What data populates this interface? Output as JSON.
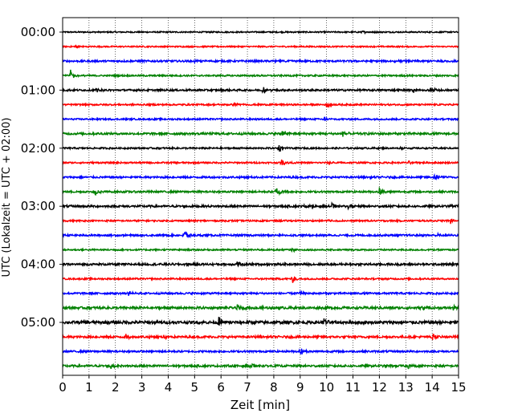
{
  "chart_data": {
    "type": "line",
    "xlabel": "Zeit  [min]",
    "ylabel": "UTC (Lokalzeit = UTC + 02:00)",
    "xlim": [
      0,
      15
    ],
    "x_ticks": [
      0,
      1,
      2,
      3,
      4,
      5,
      6,
      7,
      8,
      9,
      10,
      11,
      12,
      13,
      14,
      15
    ],
    "x_grid": true,
    "trace_minutes": 15,
    "trace_count": 24,
    "color_cycle": [
      "#000000",
      "#ff0000",
      "#0000ff",
      "#008000"
    ],
    "y_ticks": [
      {
        "trace": 0,
        "label": "00:00"
      },
      {
        "trace": 4,
        "label": "01:00"
      },
      {
        "trace": 8,
        "label": "02:00"
      },
      {
        "trace": 12,
        "label": "03:00"
      },
      {
        "trace": 16,
        "label": "04:00"
      },
      {
        "trace": 20,
        "label": "05:00"
      }
    ],
    "series": [
      {
        "start_utc": "00:00",
        "color": "#000000",
        "noise": 0.25,
        "events": [
          {
            "t": 11.3,
            "amp": 0.6
          }
        ]
      },
      {
        "start_utc": "00:15",
        "color": "#ff0000",
        "noise": 0.25,
        "events": [
          {
            "t": 0.5,
            "amp": 0.8
          }
        ]
      },
      {
        "start_utc": "00:30",
        "color": "#0000ff",
        "noise": 0.35,
        "events": [
          {
            "t": 5.0,
            "amp": 0.6
          },
          {
            "t": 8.0,
            "amp": 0.5
          },
          {
            "t": 12.6,
            "amp": 0.7
          },
          {
            "t": 14.3,
            "amp": 0.6
          }
        ]
      },
      {
        "start_utc": "00:45",
        "color": "#008000",
        "noise": 0.3,
        "events": [
          {
            "t": 0.3,
            "amp": 2.5
          }
        ]
      },
      {
        "start_utc": "01:00",
        "color": "#000000",
        "noise": 0.35,
        "events": [
          {
            "t": 1.3,
            "amp": 1.0
          },
          {
            "t": 7.6,
            "amp": 1.8
          },
          {
            "t": 13.3,
            "amp": 1.0
          },
          {
            "t": 14.0,
            "amp": 1.0
          }
        ]
      },
      {
        "start_utc": "01:15",
        "color": "#ff0000",
        "noise": 0.3,
        "events": [
          {
            "t": 6.5,
            "amp": 1.0
          },
          {
            "t": 10.0,
            "amp": 1.4
          }
        ]
      },
      {
        "start_utc": "01:30",
        "color": "#0000ff",
        "noise": 0.3,
        "events": [
          {
            "t": 9.9,
            "amp": 0.9
          }
        ]
      },
      {
        "start_utc": "01:45",
        "color": "#008000",
        "noise": 0.4,
        "events": [
          {
            "t": 8.3,
            "amp": 2.4
          },
          {
            "t": 10.6,
            "amp": 1.8
          }
        ]
      },
      {
        "start_utc": "02:00",
        "color": "#000000",
        "noise": 0.3,
        "events": [
          {
            "t": 8.2,
            "amp": 1.8
          },
          {
            "t": 12.8,
            "amp": 0.8
          }
        ]
      },
      {
        "start_utc": "02:15",
        "color": "#ff0000",
        "noise": 0.3,
        "events": [
          {
            "t": 8.3,
            "amp": 1.4
          },
          {
            "t": 10.1,
            "amp": 1.0
          },
          {
            "t": 13.1,
            "amp": 0.7
          }
        ]
      },
      {
        "start_utc": "02:30",
        "color": "#0000ff",
        "noise": 0.35,
        "events": [
          {
            "t": 14.1,
            "amp": 2.0
          }
        ]
      },
      {
        "start_utc": "02:45",
        "color": "#008000",
        "noise": 0.35,
        "events": [
          {
            "t": 1.2,
            "amp": 2.0
          },
          {
            "t": 8.1,
            "amp": 2.4
          },
          {
            "t": 12.0,
            "amp": 2.0
          }
        ]
      },
      {
        "start_utc": "03:00",
        "color": "#000000",
        "noise": 0.4,
        "events": [
          {
            "t": 9.2,
            "amp": 0.9
          },
          {
            "t": 10.2,
            "amp": 1.2
          },
          {
            "t": 10.8,
            "amp": 0.8
          },
          {
            "t": 14.7,
            "amp": 0.8
          }
        ]
      },
      {
        "start_utc": "03:15",
        "color": "#ff0000",
        "noise": 0.3,
        "events": [
          {
            "t": 10.0,
            "amp": 1.0
          },
          {
            "t": 14.7,
            "amp": 1.1
          }
        ]
      },
      {
        "start_utc": "03:30",
        "color": "#0000ff",
        "noise": 0.35,
        "events": [
          {
            "t": 4.6,
            "amp": 2.6
          },
          {
            "t": 8.3,
            "amp": 0.6
          },
          {
            "t": 14.2,
            "amp": 0.6
          }
        ]
      },
      {
        "start_utc": "03:45",
        "color": "#008000",
        "noise": 0.3,
        "events": [
          {
            "t": 8.7,
            "amp": 0.8
          }
        ]
      },
      {
        "start_utc": "04:00",
        "color": "#000000",
        "noise": 0.4,
        "events": [
          {
            "t": 6.6,
            "amp": 1.4
          },
          {
            "t": 10.5,
            "amp": 0.6
          }
        ]
      },
      {
        "start_utc": "04:15",
        "color": "#ff0000",
        "noise": 0.3,
        "events": [
          {
            "t": 8.7,
            "amp": 2.0
          }
        ]
      },
      {
        "start_utc": "04:30",
        "color": "#0000ff",
        "noise": 0.35,
        "events": [
          {
            "t": 2.5,
            "amp": 0.9
          },
          {
            "t": 9.0,
            "amp": 0.6
          }
        ]
      },
      {
        "start_utc": "04:45",
        "color": "#008000",
        "noise": 0.45,
        "events": [
          {
            "t": 6.6,
            "amp": 1.4
          },
          {
            "t": 7.4,
            "amp": 1.0
          },
          {
            "t": 13.6,
            "amp": 0.9
          },
          {
            "t": 14.8,
            "amp": 1.0
          }
        ]
      },
      {
        "start_utc": "05:00",
        "color": "#000000",
        "noise": 0.55,
        "events": [
          {
            "t": 5.9,
            "amp": 2.6
          },
          {
            "t": 9.9,
            "amp": 1.6
          }
        ]
      },
      {
        "start_utc": "05:15",
        "color": "#ff0000",
        "noise": 0.4,
        "events": [
          {
            "t": 2.4,
            "amp": 1.2
          },
          {
            "t": 3.8,
            "amp": 0.9
          },
          {
            "t": 14.0,
            "amp": 2.0
          }
        ]
      },
      {
        "start_utc": "05:30",
        "color": "#0000ff",
        "noise": 0.35,
        "events": [
          {
            "t": 9.0,
            "amp": 1.4
          }
        ]
      },
      {
        "start_utc": "05:45",
        "color": "#008000",
        "noise": 0.4,
        "events": [
          {
            "t": 1.8,
            "amp": 1.6
          },
          {
            "t": 7.1,
            "amp": 1.4
          },
          {
            "t": 13.1,
            "amp": 1.2
          }
        ]
      }
    ]
  }
}
